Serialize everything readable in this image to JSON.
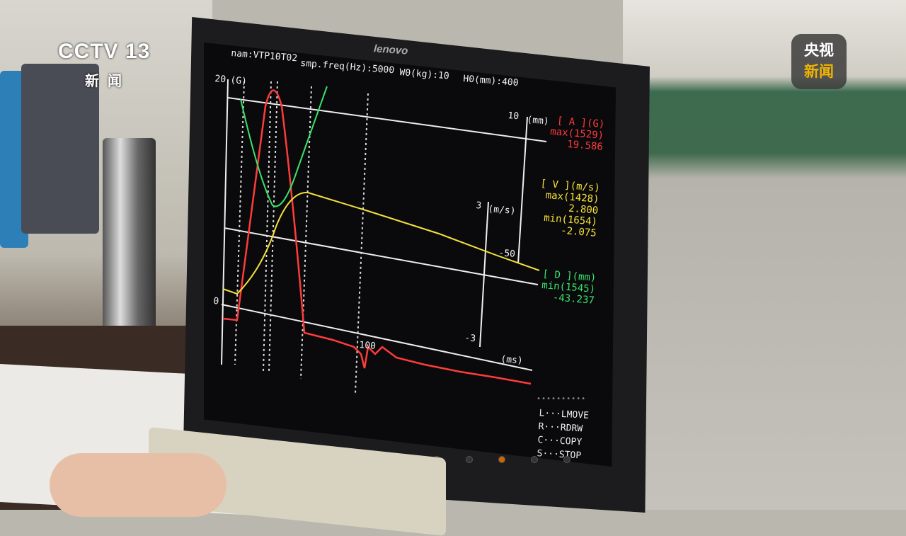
{
  "overlay": {
    "channel_logo": "CCTV 13",
    "channel_sub": "新闻",
    "app_logo_top": "央视",
    "app_logo_bottom": "新闻"
  },
  "monitor": {
    "brand": "lenovo"
  },
  "screen": {
    "header": {
      "name": "nam:VTP10T02",
      "freq": "smp.freq(Hz):5000",
      "w0": "W0(kg):10",
      "h0": "H0(mm):400"
    },
    "axes": {
      "accel_max": "20",
      "accel_unit": "(G)",
      "accel_zero": "0",
      "disp_top": "10",
      "disp_unit": "(mm)",
      "disp_bottom": "-50",
      "vel_top": "3",
      "vel_unit": "(m/s)",
      "vel_bottom": "-3",
      "time_tick": "100",
      "time_unit": "(ms)"
    },
    "legend": {
      "a_title": "[ A ](G)",
      "a_max_label": "max(1529)",
      "a_max": "19.586",
      "v_title": "[ V ](m/s)",
      "v_max_label": "max(1428)",
      "v_max": "2.800",
      "v_min_label": "min(1654)",
      "v_min": "-2.075",
      "d_title": "[ D ](mm)",
      "d_min_label": "min(1545)",
      "d_min": "-43.237"
    },
    "keys": [
      "L···LMOVE",
      "R···RDRW",
      "C···COPY",
      "S···STOP"
    ],
    "colors": {
      "accel": "#ff3b3b",
      "velocity": "#f5e23a",
      "displacement": "#39e36a"
    }
  }
}
